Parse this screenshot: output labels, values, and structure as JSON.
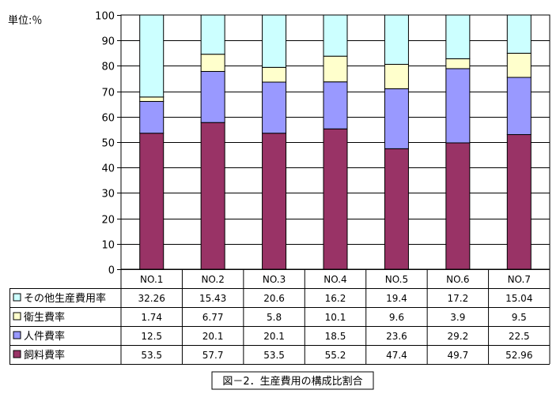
{
  "chart_data": {
    "type": "bar",
    "stacked": true,
    "unit_label": "単位:％",
    "categories": [
      "NO.1",
      "NO.2",
      "NO.3",
      "NO.4",
      "NO.5",
      "NO.6",
      "NO.7"
    ],
    "ylim": [
      0,
      100
    ],
    "yticks": [
      0,
      10,
      20,
      30,
      40,
      50,
      60,
      70,
      80,
      90,
      100
    ],
    "grid": true,
    "series": [
      {
        "name": "飼料費率",
        "color": "#993366",
        "values": [
          "53.5",
          "57.7",
          "53.5",
          "55.2",
          "47.4",
          "49.7",
          "52.96"
        ]
      },
      {
        "name": "人件費率",
        "color": "#9999ff",
        "values": [
          "12.5",
          "20.1",
          "20.1",
          "18.5",
          "23.6",
          "29.2",
          "22.5"
        ]
      },
      {
        "name": "衛生費率",
        "color": "#ffffcc",
        "values": [
          "1.74",
          "6.77",
          "5.8",
          "10.1",
          "9.6",
          "3.9",
          "9.5"
        ]
      },
      {
        "name": "その他生産費用率",
        "color": "#ccffff",
        "values": [
          "32.26",
          "15.43",
          "20.6",
          "16.2",
          "19.4",
          "17.2",
          "15.04"
        ]
      }
    ],
    "table_row_order": [
      3,
      2,
      1,
      0
    ],
    "caption": "図－2．生産費用の構成比割合"
  }
}
